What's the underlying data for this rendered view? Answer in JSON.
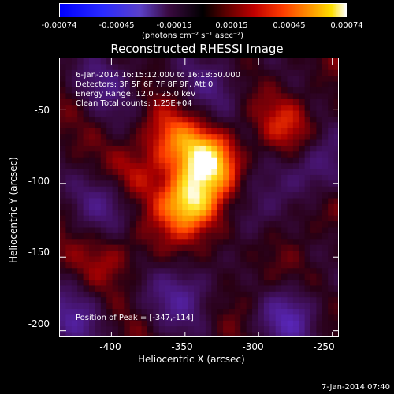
{
  "colorbar": {
    "ticks": [
      "-0.00074",
      "-0.00045",
      "-0.00015",
      "0.00015",
      "0.00045",
      "0.00074"
    ],
    "unit": "(photons cm⁻² s⁻¹ asec⁻²)"
  },
  "chart_data": {
    "type": "heatmap",
    "title": "Reconstructed RHESSI Image",
    "xlabel": "Heliocentric X (arcsec)",
    "ylabel": "Heliocentric Y (arcsec)",
    "xlim": [
      -435,
      -245
    ],
    "ylim": [
      -205,
      -15
    ],
    "x_ticks": [
      "-400",
      "-350",
      "-300",
      "-250"
    ],
    "y_ticks": [
      "-50",
      "-100",
      "-150",
      "-200"
    ],
    "x_tick_values": [
      -400,
      -350,
      -300,
      -250
    ],
    "y_tick_values": [
      -50,
      -100,
      -150,
      -200
    ],
    "color_range": [
      -0.00074,
      0.00074
    ],
    "annotations": {
      "time": "6-Jan-2014 16:15:12.000 to 16:18:50.000",
      "detectors": "Detectors: 3F 5F 6F 7F 8F 9F, Att 0",
      "energy": "Energy Range: 12.0 - 25.0 keV",
      "method": "Clean    Total counts: 1.25E+04",
      "peak": "Position of Peak = [-347,-114]"
    },
    "peak": [
      -347,
      -114
    ],
    "sources": [
      {
        "x": -347,
        "y": -114,
        "value": 0.00074
      },
      {
        "x": -335,
        "y": -85,
        "value": 0.00065
      },
      {
        "x": -360,
        "y": -70,
        "value": 0.0003
      },
      {
        "x": -385,
        "y": -95,
        "value": 0.00025
      },
      {
        "x": -320,
        "y": -135,
        "value": 0.0002
      },
      {
        "x": -280,
        "y": -60,
        "value": 0.00022
      },
      {
        "x": -400,
        "y": -150,
        "value": 0.00018
      },
      {
        "x": -300,
        "y": -175,
        "value": 0.00012
      },
      {
        "x": -265,
        "y": -120,
        "value": 0.0001
      }
    ],
    "negative_regions": [
      {
        "x": -310,
        "y": -125,
        "value": -0.0003
      },
      {
        "x": -280,
        "y": -190,
        "value": -0.00035
      },
      {
        "x": -425,
        "y": -190,
        "value": -0.00025
      },
      {
        "x": -350,
        "y": -175,
        "value": -0.0003
      },
      {
        "x": -400,
        "y": -110,
        "value": -0.00028
      },
      {
        "x": -260,
        "y": -90,
        "value": -0.0003
      },
      {
        "x": -330,
        "y": -30,
        "value": -0.0002
      },
      {
        "x": -400,
        "y": -30,
        "value": -0.00022
      }
    ]
  },
  "footer": {
    "timestamp": "7-Jan-2014 07:40"
  }
}
